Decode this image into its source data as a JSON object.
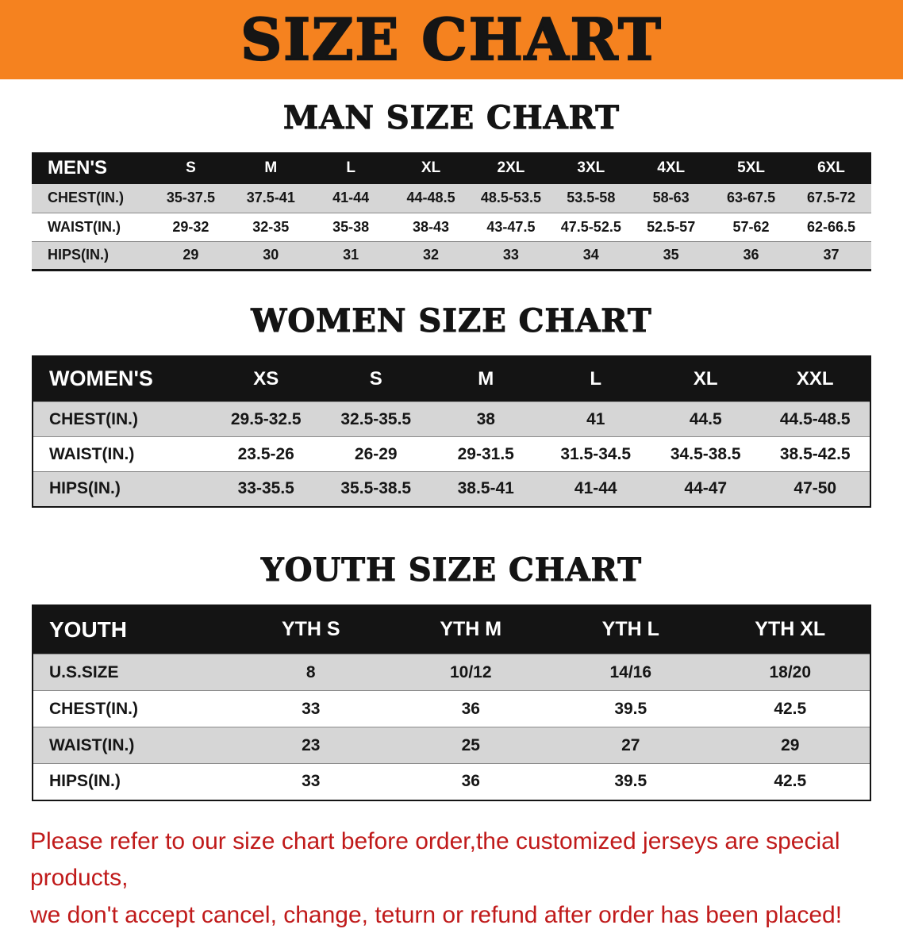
{
  "banner": {
    "title": "SIZE CHART",
    "bg_color": "#F5821F",
    "text_color": "#151515"
  },
  "sections": [
    {
      "heading": "MAN SIZE CHART",
      "table": {
        "header": [
          "MEN'S",
          "S",
          "M",
          "L",
          "XL",
          "2XL",
          "3XL",
          "4XL",
          "5XL",
          "6XL"
        ],
        "rows": [
          [
            "CHEST(IN.)",
            "35-37.5",
            "37.5-41",
            "41-44",
            "44-48.5",
            "48.5-53.5",
            "53.5-58",
            "58-63",
            "63-67.5",
            "67.5-72"
          ],
          [
            "WAIST(IN.)",
            "29-32",
            "32-35",
            "35-38",
            "38-43",
            "43-47.5",
            "47.5-52.5",
            "52.5-57",
            "57-62",
            "62-66.5"
          ],
          [
            "HIPS(IN.)",
            "29",
            "30",
            "31",
            "32",
            "33",
            "34",
            "35",
            "36",
            "37"
          ]
        ]
      }
    },
    {
      "heading": "WOMEN SIZE CHART",
      "table": {
        "header": [
          "WOMEN'S",
          "XS",
          "S",
          "M",
          "L",
          "XL",
          "XXL"
        ],
        "rows": [
          [
            "CHEST(IN.)",
            "29.5-32.5",
            "32.5-35.5",
            "38",
            "41",
            "44.5",
            "44.5-48.5"
          ],
          [
            "WAIST(IN.)",
            "23.5-26",
            "26-29",
            "29-31.5",
            "31.5-34.5",
            "34.5-38.5",
            "38.5-42.5"
          ],
          [
            "HIPS(IN.)",
            "33-35.5",
            "35.5-38.5",
            "38.5-41",
            "41-44",
            "44-47",
            "47-50"
          ]
        ]
      }
    },
    {
      "heading": "YOUTH SIZE CHART",
      "table": {
        "header": [
          "YOUTH",
          "YTH S",
          "YTH M",
          "YTH L",
          "YTH XL"
        ],
        "rows": [
          [
            "U.S.SIZE",
            "8",
            "10/12",
            "14/16",
            "18/20"
          ],
          [
            "CHEST(IN.)",
            "33",
            "36",
            "39.5",
            "42.5"
          ],
          [
            "WAIST(IN.)",
            "23",
            "25",
            "27",
            "29"
          ],
          [
            "HIPS(IN.)",
            "33",
            "36",
            "39.5",
            "42.5"
          ]
        ]
      }
    }
  ],
  "disclaimer": {
    "text_color": "#C01A1A",
    "line1": "Please refer to our size chart before order,the customized jerseys are special products,",
    "line2": "we don't accept cancel, change, teturn or refund after order has been placed!"
  }
}
